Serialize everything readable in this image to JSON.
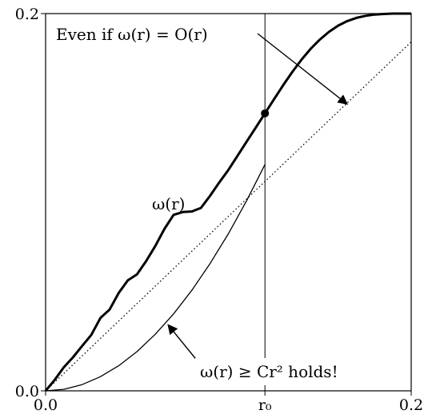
{
  "chart_data": {
    "type": "line",
    "xlim": [
      0,
      0.2
    ],
    "ylim": [
      0,
      0.2
    ],
    "x_ticks": [
      {
        "value": 0.0,
        "label": "0.0"
      },
      {
        "value": 0.12,
        "label": "r₀"
      },
      {
        "value": 0.2,
        "label": "0.2"
      }
    ],
    "y_ticks": [
      {
        "value": 0.0,
        "label": "0.0"
      },
      {
        "value": 0.2,
        "label": "0.2"
      }
    ],
    "grid": false,
    "r0": 0.12,
    "series": [
      {
        "style": "thick-solid",
        "x": [
          0.0,
          0.005,
          0.01,
          0.015,
          0.02,
          0.025,
          0.03,
          0.035,
          0.04,
          0.045,
          0.05,
          0.055,
          0.06,
          0.065,
          0.07,
          0.075,
          0.08,
          0.085,
          0.09,
          0.095,
          0.1,
          0.105,
          0.11,
          0.115,
          0.12,
          0.125,
          0.13,
          0.135,
          0.14,
          0.145,
          0.15,
          0.155,
          0.16,
          0.165,
          0.17,
          0.175,
          0.18,
          0.185,
          0.19,
          0.195,
          0.2
        ],
        "y": [
          0.0,
          0.0058,
          0.0125,
          0.0178,
          0.0238,
          0.0296,
          0.0386,
          0.0431,
          0.0519,
          0.0586,
          0.0618,
          0.0688,
          0.0768,
          0.0858,
          0.0933,
          0.0948,
          0.0951,
          0.097,
          0.1034,
          0.1105,
          0.1171,
          0.1246,
          0.1321,
          0.1396,
          0.1471,
          0.1546,
          0.1621,
          0.1691,
          0.1756,
          0.1813,
          0.1862,
          0.1903,
          0.1936,
          0.196,
          0.1977,
          0.1988,
          0.1995,
          0.1998,
          0.2,
          0.2,
          0.2
        ]
      },
      {
        "style": "thin-solid",
        "x": [
          0.0,
          0.01,
          0.02,
          0.03,
          0.04,
          0.05,
          0.06,
          0.07,
          0.08,
          0.09,
          0.1,
          0.11,
          0.12
        ],
        "y": [
          0.0,
          0.0008,
          0.0033,
          0.0075,
          0.0133,
          0.0208,
          0.03,
          0.0408,
          0.0533,
          0.0675,
          0.0833,
          0.1008,
          0.12
        ]
      },
      {
        "style": "dotted",
        "x": [
          0.0,
          0.2
        ],
        "y": [
          0.0,
          0.185
        ]
      }
    ],
    "marker": {
      "x": 0.12,
      "y": 0.1471
    },
    "annotations": [
      {
        "id": "top",
        "text": "Even if ω(r) = O(r)",
        "arrow_to": {
          "x": 0.165,
          "y": 0.152
        }
      },
      {
        "id": "omega",
        "text": "ω(r)"
      },
      {
        "id": "bottom",
        "text": "ω(r) ≥ Cr² holds!",
        "arrow_to": {
          "x": 0.067,
          "y": 0.035
        }
      }
    ]
  }
}
